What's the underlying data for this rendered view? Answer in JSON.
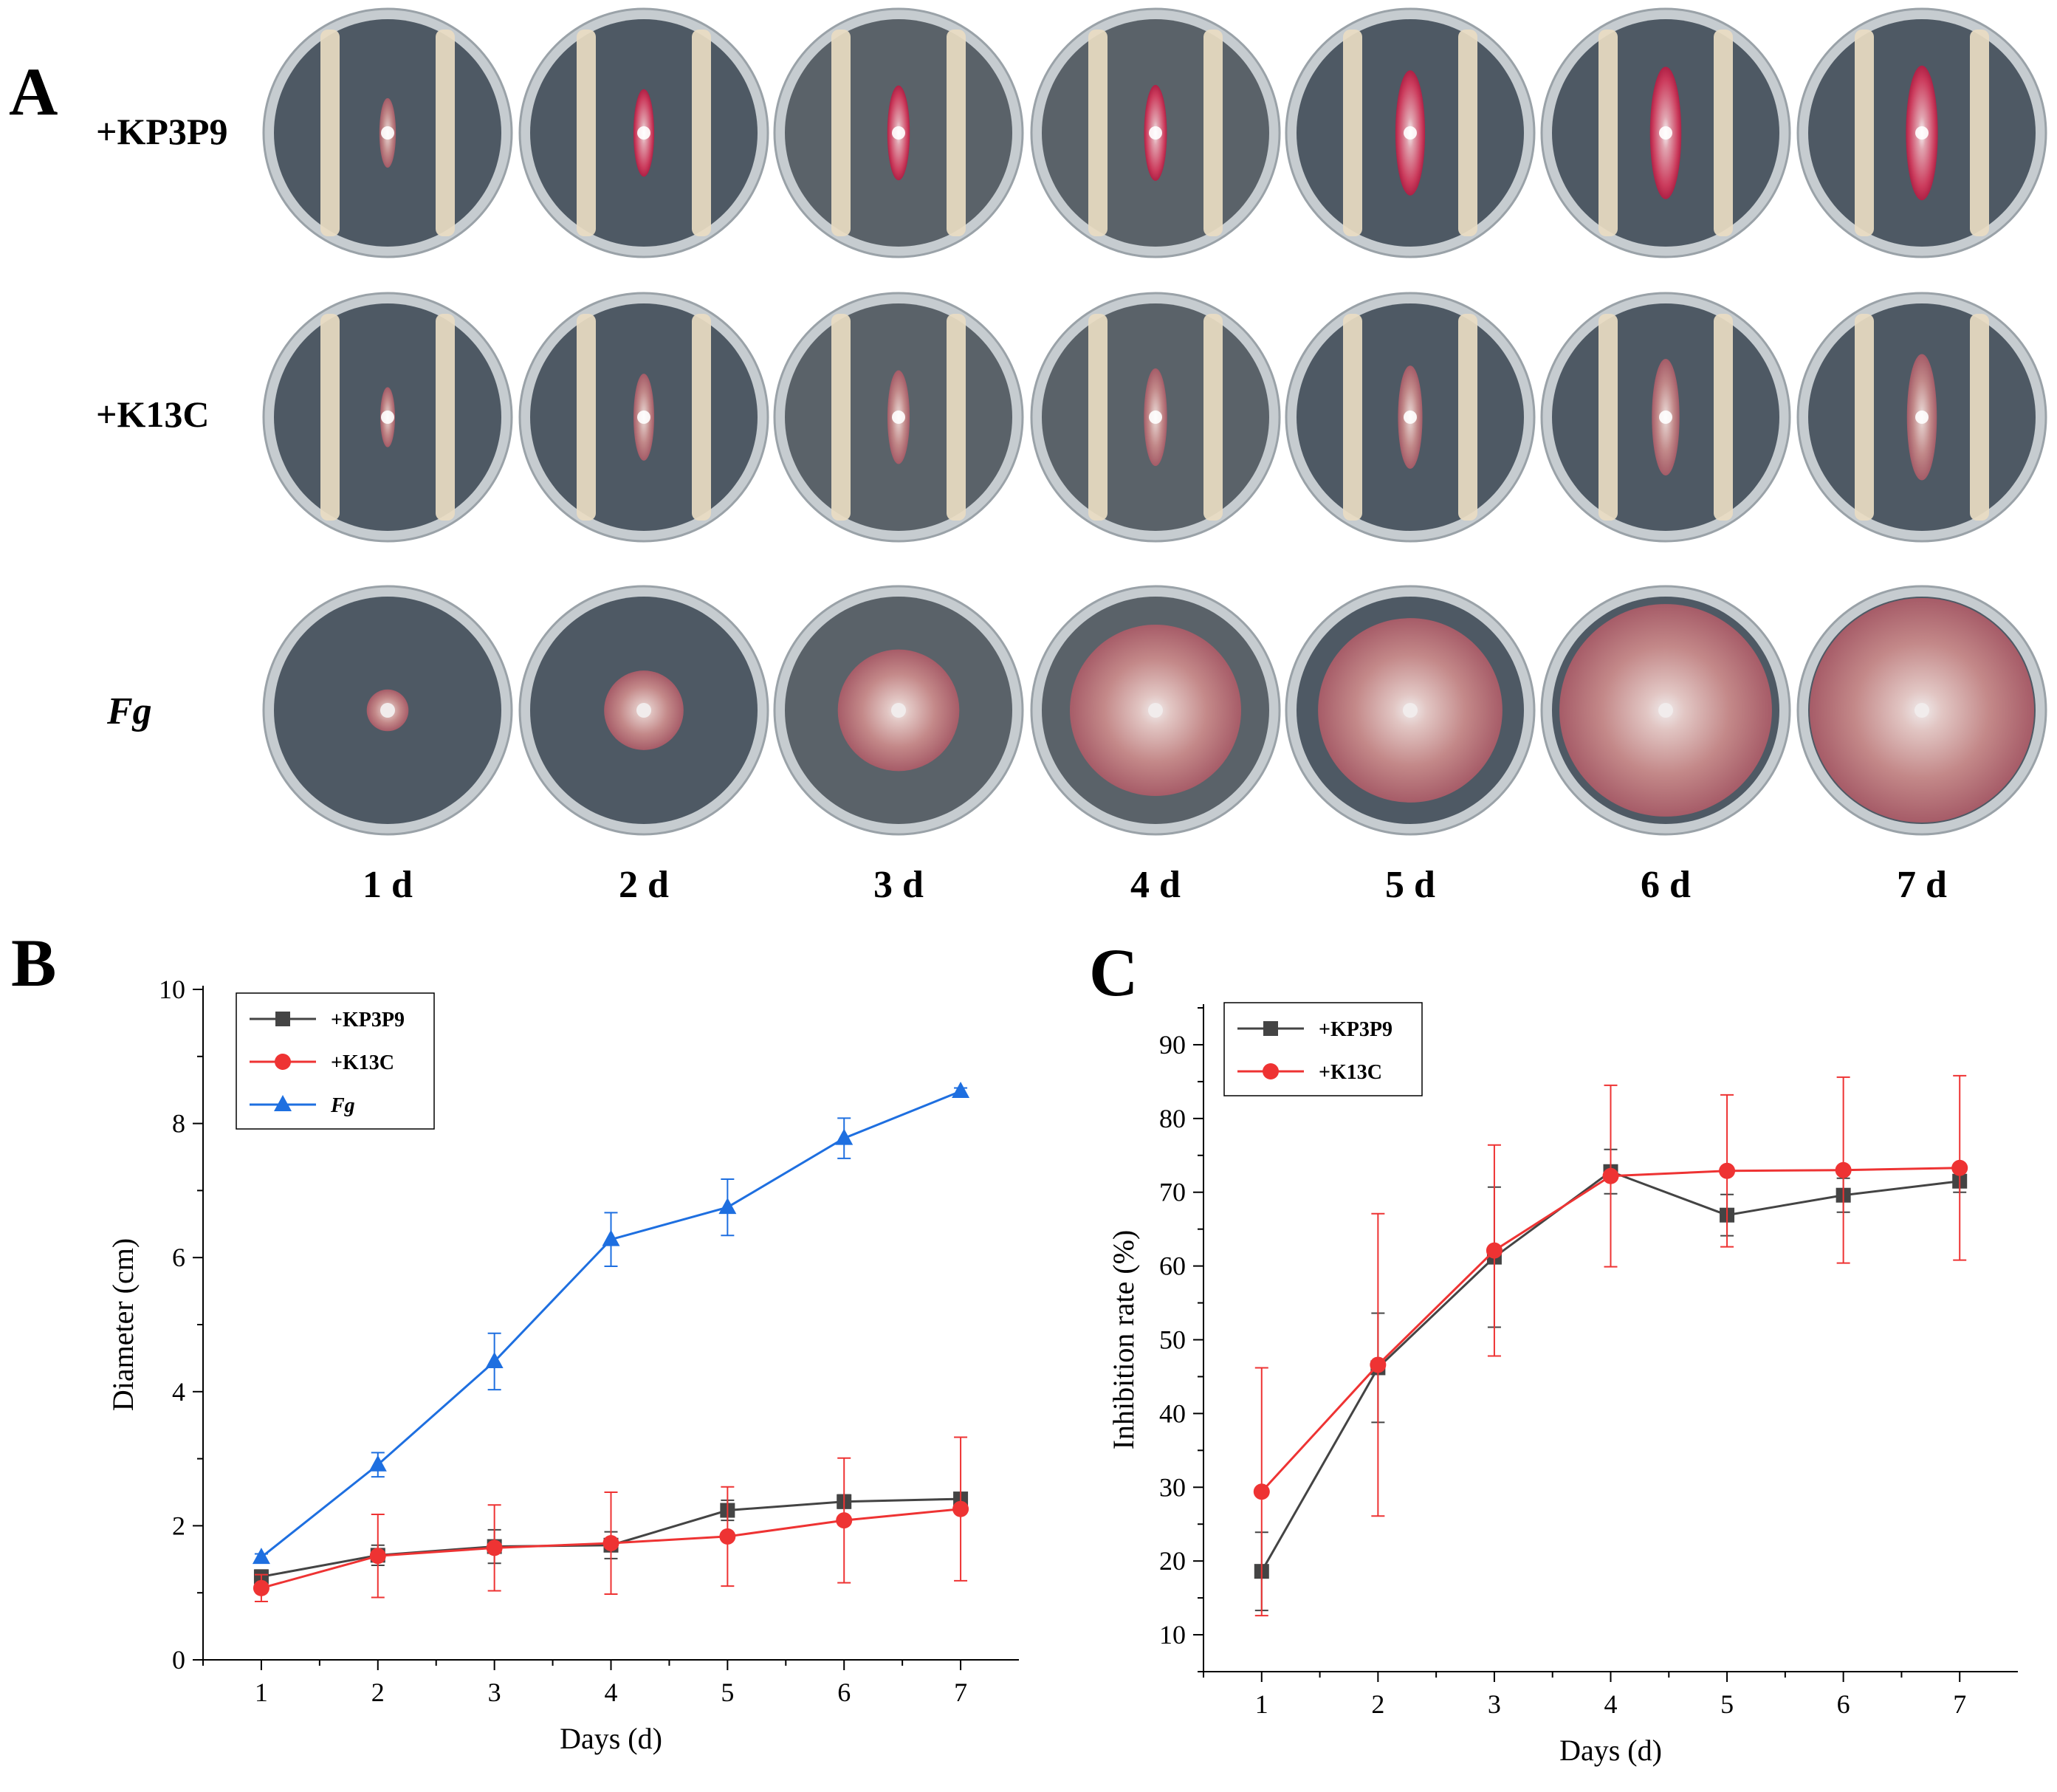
{
  "panel_a": {
    "letter": "A",
    "rows": [
      {
        "label": "+KP3P9",
        "italic": false,
        "kind": "dual"
      },
      {
        "label": "+K13C",
        "italic": false,
        "kind": "dual"
      },
      {
        "label": "Fg",
        "italic": true,
        "kind": "single"
      }
    ],
    "days": [
      "1 d",
      "2 d",
      "3 d",
      "4 d",
      "5 d",
      "6 d",
      "7 d"
    ],
    "colony_diameter_cm": {
      "kp3p9": [
        1.24,
        1.56,
        1.69,
        1.71,
        2.23,
        2.36,
        2.4
      ],
      "k13c": [
        1.07,
        1.55,
        1.67,
        1.74,
        1.84,
        2.08,
        2.25
      ],
      "fg": [
        1.53,
        2.91,
        4.45,
        6.27,
        6.75,
        7.78,
        8.48
      ]
    },
    "colors": {
      "plate_bg": "#c6ccd0",
      "dark_medium": "#4e5964",
      "bacteria": "#e9dcc2",
      "pink": "#d9365a",
      "fungus": "#b7787c"
    }
  },
  "chart_data": [
    {
      "panel": "B",
      "type": "line",
      "x": [
        1,
        2,
        3,
        4,
        5,
        6,
        7
      ],
      "xlabel": "Days (d)",
      "ylabel": "Diameter (cm)",
      "xlim": [
        0.5,
        7.5
      ],
      "ylim": [
        0,
        10
      ],
      "xticks": [
        "1",
        "2",
        "3",
        "4",
        "5",
        "6",
        "7"
      ],
      "yticks": [
        "0",
        "2",
        "4",
        "6",
        "8",
        "10"
      ],
      "legend": "top-left",
      "series": [
        {
          "name": "+KP3P9",
          "italic": false,
          "color": "#444444",
          "marker": "square",
          "values": [
            1.24,
            1.56,
            1.69,
            1.71,
            2.23,
            2.36,
            2.4
          ],
          "errors": [
            0.1,
            0.15,
            0.25,
            0.2,
            0.15,
            0.1,
            0.05
          ]
        },
        {
          "name": "+K13C",
          "italic": false,
          "color": "#ee3333",
          "marker": "circle",
          "values": [
            1.07,
            1.55,
            1.67,
            1.74,
            1.84,
            2.08,
            2.25
          ],
          "errors": [
            0.2,
            0.62,
            0.64,
            0.76,
            0.74,
            0.93,
            1.07
          ]
        },
        {
          "name": "Fg",
          "italic": true,
          "color": "#1e6fe0",
          "marker": "triangle",
          "values": [
            1.53,
            2.91,
            4.45,
            6.27,
            6.75,
            7.78,
            8.48
          ],
          "errors": [
            0.05,
            0.18,
            0.42,
            0.4,
            0.42,
            0.3,
            0.05
          ]
        }
      ]
    },
    {
      "panel": "C",
      "type": "line",
      "x": [
        1,
        2,
        3,
        4,
        5,
        6,
        7
      ],
      "xlabel": "Days (d)",
      "ylabel": "Inhibition rate (%)",
      "xlim": [
        0.5,
        7.5
      ],
      "ylim": [
        5,
        95
      ],
      "xticks": [
        "1",
        "2",
        "3",
        "4",
        "5",
        "6",
        "7"
      ],
      "yticks": [
        "10",
        "20",
        "30",
        "40",
        "50",
        "60",
        "70",
        "80",
        "90"
      ],
      "legend": "top-left",
      "series": [
        {
          "name": "+KP3P9",
          "italic": false,
          "color": "#444444",
          "marker": "square",
          "values": [
            18.6,
            46.2,
            61.2,
            72.8,
            66.9,
            69.6,
            71.5
          ],
          "errors": [
            5.3,
            7.4,
            9.5,
            3.0,
            2.8,
            2.3,
            1.5
          ]
        },
        {
          "name": "+K13C",
          "italic": false,
          "color": "#ee3333",
          "marker": "circle",
          "values": [
            29.4,
            46.6,
            62.1,
            72.2,
            72.9,
            73.0,
            73.3
          ],
          "errors": [
            16.8,
            20.5,
            14.3,
            12.3,
            10.3,
            12.6,
            12.5
          ]
        }
      ]
    }
  ]
}
